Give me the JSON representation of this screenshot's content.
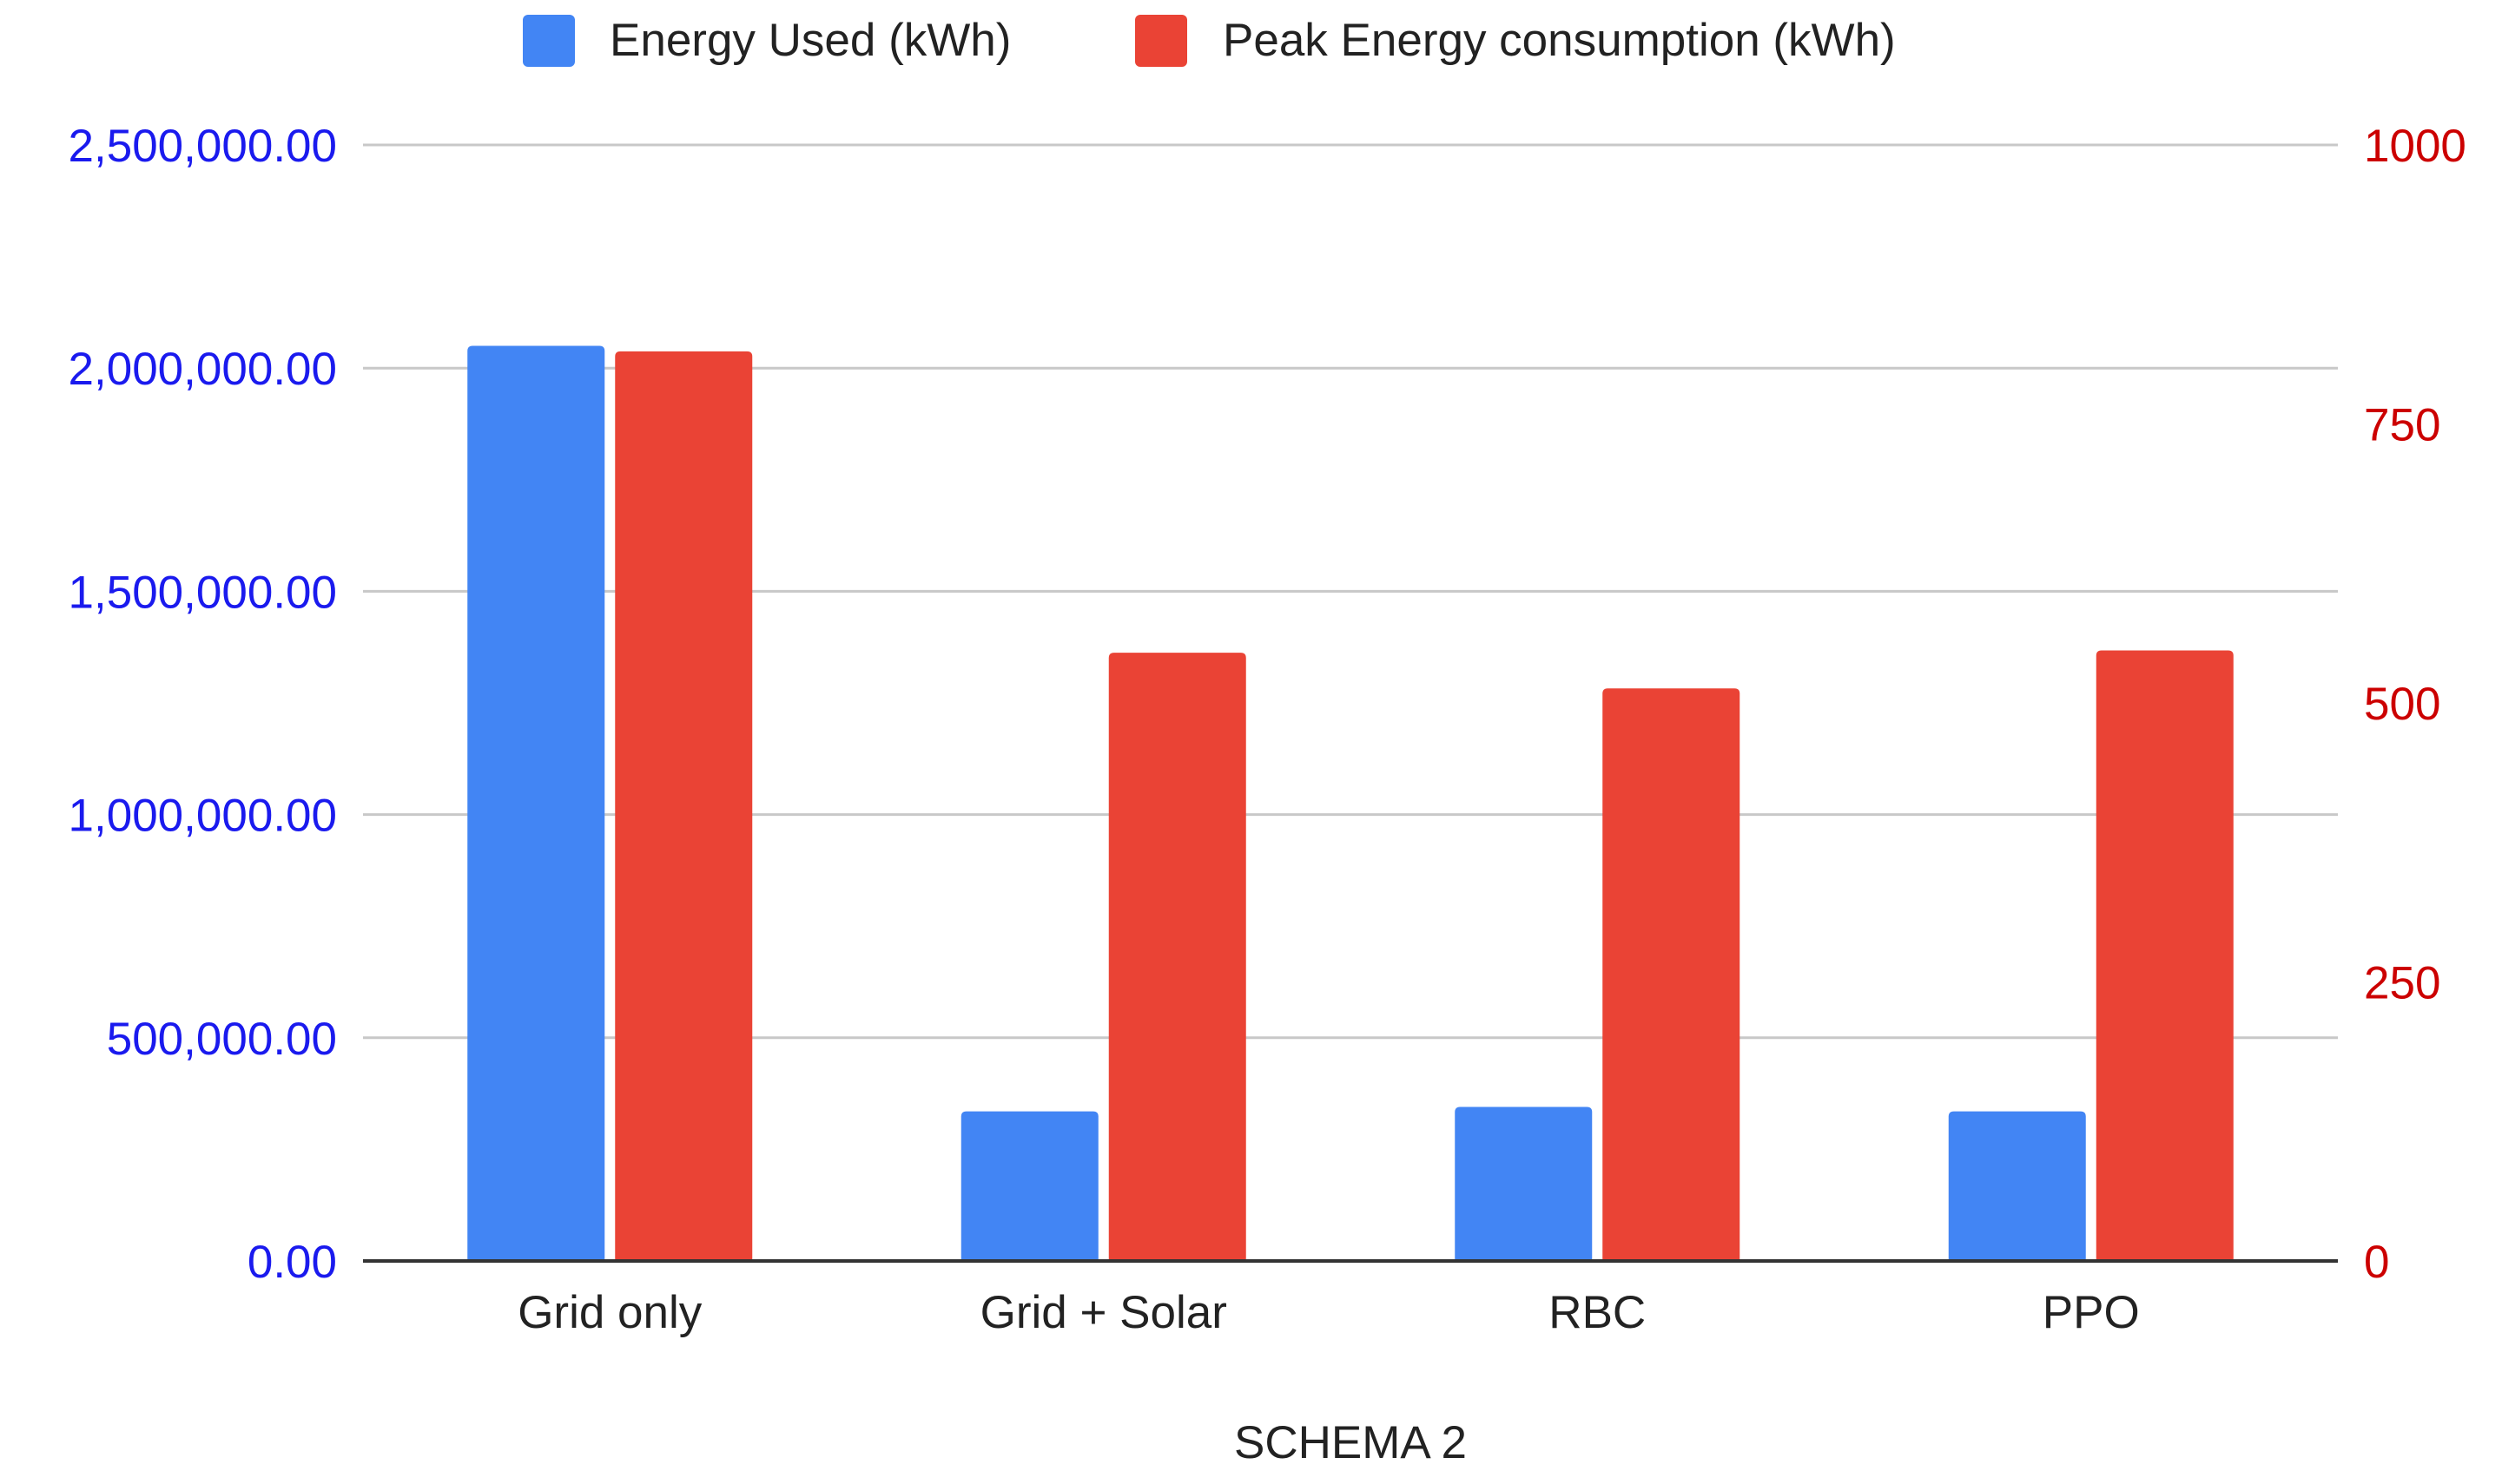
{
  "chart_data": {
    "type": "bar",
    "categories": [
      "Grid only",
      "Grid + Solar",
      "RBC",
      "PPO"
    ],
    "series": [
      {
        "name": "Energy Used (kWh)",
        "axis": "left",
        "color": "#4285f4",
        "values": [
          2050000,
          335000,
          345000,
          335000
        ]
      },
      {
        "name": "Peak Energy consumption (kWh)",
        "axis": "right",
        "color": "#ea4335",
        "values": [
          815,
          545,
          513,
          547
        ]
      }
    ],
    "xlabel": "SCHEMA 2",
    "ylabel": "",
    "y2label": "",
    "ylim": [
      0,
      2500000
    ],
    "y2lim": [
      0,
      1000
    ],
    "yticks": [
      "0.00",
      "500,000.00",
      "1,000,000.00",
      "1,500,000.00",
      "2,000,000.00",
      "2,500,000.00"
    ],
    "y2ticks": [
      "0",
      "250",
      "500",
      "750",
      "1000"
    ],
    "left_axis_color": "#1a1aee",
    "right_axis_color": "#cc0000",
    "grid": true,
    "legend_position": "top-center"
  }
}
